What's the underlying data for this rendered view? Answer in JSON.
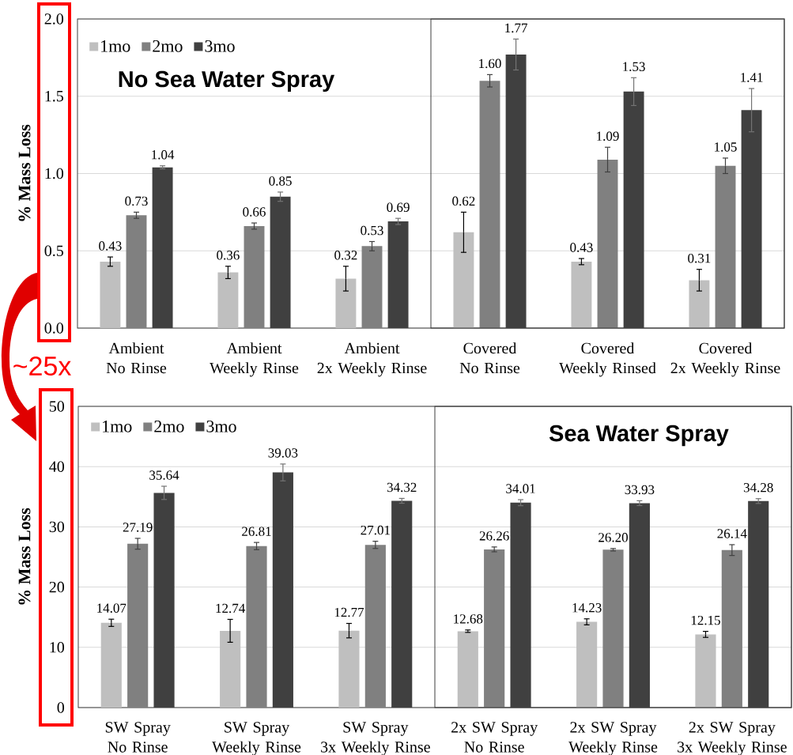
{
  "chart_data": [
    {
      "type": "bar",
      "title": "No Sea Water Spray",
      "ylabel": "% Mass Loss",
      "categories": [
        "Ambient\nNo Rinse",
        "Ambient\nWeekly Rinse",
        "Ambient\n2x Weekly Rinse",
        "Covered\nNo Rinse",
        "Covered\nWeekly Rinsed",
        "Covered\n2x Weekly Rinse"
      ],
      "series": [
        {
          "name": "1mo",
          "color": "#bfbfbf",
          "values": [
            0.43,
            0.36,
            0.32,
            0.62,
            0.43,
            0.31
          ],
          "errors": [
            0.03,
            0.04,
            0.08,
            0.13,
            0.02,
            0.07
          ],
          "value_labels": [
            "0.43",
            "0.36",
            "0.32",
            "0.62",
            "0.43",
            "0.31"
          ]
        },
        {
          "name": "2mo",
          "color": "#808080",
          "values": [
            0.73,
            0.66,
            0.53,
            1.6,
            1.09,
            1.05
          ],
          "errors": [
            0.02,
            0.02,
            0.03,
            0.04,
            0.08,
            0.05
          ],
          "value_labels": [
            "0.73",
            "0.66",
            "0.53",
            "1.60",
            "1.09",
            "1.05"
          ]
        },
        {
          "name": "3mo",
          "color": "#404040",
          "values": [
            1.04,
            0.85,
            0.69,
            1.77,
            1.53,
            1.41
          ],
          "errors": [
            0.01,
            0.03,
            0.02,
            0.1,
            0.09,
            0.14
          ],
          "value_labels": [
            "1.04",
            "0.85",
            "0.69",
            "1.77",
            "1.53",
            "1.41"
          ]
        }
      ],
      "ylim": [
        0,
        2
      ],
      "yticks": [
        {
          "value": 0,
          "label": "0.0"
        },
        0.5,
        {
          "value": 1,
          "label": "1.0"
        },
        1.5,
        {
          "value": 2,
          "label": "2.0"
        }
      ],
      "grid": "y",
      "legend": "top left",
      "annotations": [
        "~25x"
      ]
    },
    {
      "type": "bar",
      "title": "Sea Water Spray",
      "ylabel": "% Mass Loss",
      "categories": [
        "SW Spray\nNo Rinse",
        "SW Spray\nWeekly Rinse",
        "SW Spray\n3x Weekly Rinse",
        "2x SW Spray\nNo Rinse",
        "2x SW Spray\nWeekly Rinse",
        "2x SW Spray\n3x Weekly Rinse"
      ],
      "series": [
        {
          "name": "1mo",
          "color": "#bfbfbf",
          "values": [
            14.07,
            12.74,
            12.77,
            12.68,
            14.23,
            12.15
          ],
          "errors": [
            0.6,
            1.9,
            1.2,
            0.2,
            0.5,
            0.5
          ],
          "value_labels": [
            "14.07",
            "12.74",
            "12.77",
            "12.68",
            "14.23",
            "12.15"
          ]
        },
        {
          "name": "2mo",
          "color": "#808080",
          "values": [
            27.19,
            26.81,
            27.01,
            26.26,
            26.2,
            26.14
          ],
          "errors": [
            0.9,
            0.6,
            0.6,
            0.4,
            0.2,
            0.9
          ],
          "value_labels": [
            "27.19",
            "26.81",
            "27.01",
            "26.26",
            "26.20",
            "26.14"
          ]
        },
        {
          "name": "3mo",
          "color": "#404040",
          "values": [
            35.64,
            39.03,
            34.32,
            34.01,
            33.93,
            34.28
          ],
          "errors": [
            1.1,
            1.4,
            0.4,
            0.5,
            0.4,
            0.4
          ],
          "value_labels": [
            "35.64",
            "39.03",
            "34.32",
            "34.01",
            "33.93",
            "34.28"
          ]
        }
      ],
      "ylim": [
        0,
        50
      ],
      "yticks": [
        0,
        10,
        20,
        30,
        40,
        50
      ],
      "grid": "y",
      "legend": "top left"
    }
  ]
}
